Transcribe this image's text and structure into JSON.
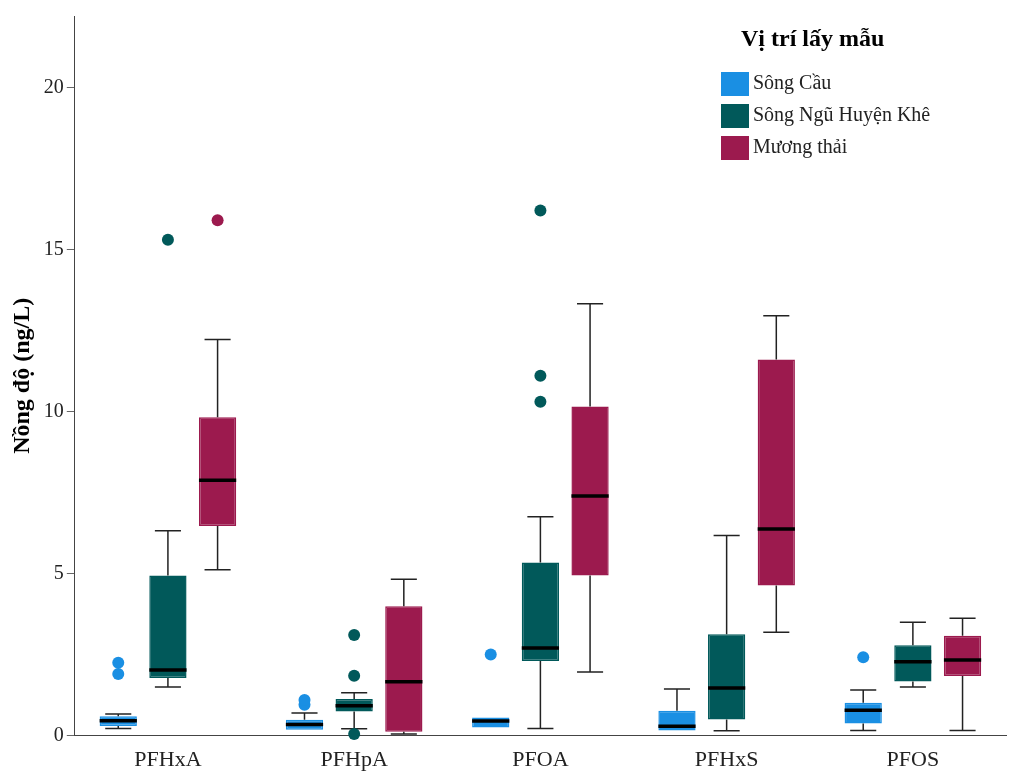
{
  "chart_data": {
    "type": "box",
    "ylabel": "Nồng độ (ng/L)",
    "legend_title": "Vị trí lấy mẫu",
    "legend": "top right",
    "grid": false,
    "categories": [
      "PFHxA",
      "PFHpA",
      "PFOA",
      "PFHxS",
      "PFOS"
    ],
    "ylim": [
      0,
      22.2
    ],
    "yticks": [
      0,
      5,
      10,
      15,
      20
    ],
    "series": [
      {
        "name": "Sông Cầu",
        "color": "#1a8fe3",
        "boxes": [
          {
            "low": 0.22,
            "q1": 0.3,
            "median": 0.46,
            "q3": 0.6,
            "high": 0.67,
            "outliers": [
              1.9,
              2.25
            ]
          },
          {
            "low": 0.18,
            "q1": 0.18,
            "median": 0.34,
            "q3": 0.49,
            "high": 0.7,
            "outliers": [
              0.95,
              1.1
            ]
          },
          {
            "low": 0.25,
            "q1": 0.25,
            "median": 0.45,
            "q3": 0.56,
            "high": 0.56,
            "outliers": [
              2.5
            ]
          },
          {
            "low": 0.16,
            "q1": 0.16,
            "median": 0.29,
            "q3": 0.77,
            "high": 1.44
          },
          {
            "low": 0.16,
            "q1": 0.37,
            "median": 0.78,
            "q3": 1.01,
            "high": 1.41,
            "outliers": [
              2.42
            ]
          }
        ]
      },
      {
        "name": "Sông Ngũ Huyện Khê",
        "color": "#01595a",
        "boxes": [
          {
            "low": 1.5,
            "q1": 1.78,
            "median": 2.02,
            "q3": 4.94,
            "high": 6.32,
            "outliers": [
              15.3
            ]
          },
          {
            "low": 0.21,
            "q1": 0.74,
            "median": 0.92,
            "q3": 1.13,
            "high": 1.32,
            "outliers": [
              0.05,
              1.85,
              3.1
            ]
          },
          {
            "low": 0.22,
            "q1": 2.3,
            "median": 2.7,
            "q3": 5.34,
            "high": 6.75,
            "outliers": [
              10.3,
              11.1,
              16.2
            ]
          },
          {
            "low": 0.15,
            "q1": 0.5,
            "median": 1.47,
            "q3": 3.13,
            "high": 6.17
          },
          {
            "low": 1.5,
            "q1": 1.67,
            "median": 2.28,
            "q3": 2.79,
            "high": 3.5
          }
        ]
      },
      {
        "name": "Mương thải",
        "color": "#9c1a4e",
        "boxes": [
          {
            "low": 5.12,
            "q1": 6.47,
            "median": 7.88,
            "q3": 9.82,
            "high": 12.22,
            "outliers": [
              15.9
            ]
          },
          {
            "low": 0.05,
            "q1": 0.12,
            "median": 1.66,
            "q3": 3.99,
            "high": 4.82
          },
          {
            "low": 1.96,
            "q1": 4.94,
            "median": 7.39,
            "q3": 10.15,
            "high": 13.32
          },
          {
            "low": 3.19,
            "q1": 4.63,
            "median": 6.37,
            "q3": 11.6,
            "high": 12.95
          },
          {
            "low": 0.16,
            "q1": 1.84,
            "median": 2.33,
            "q3": 3.08,
            "high": 3.62
          }
        ]
      }
    ]
  }
}
